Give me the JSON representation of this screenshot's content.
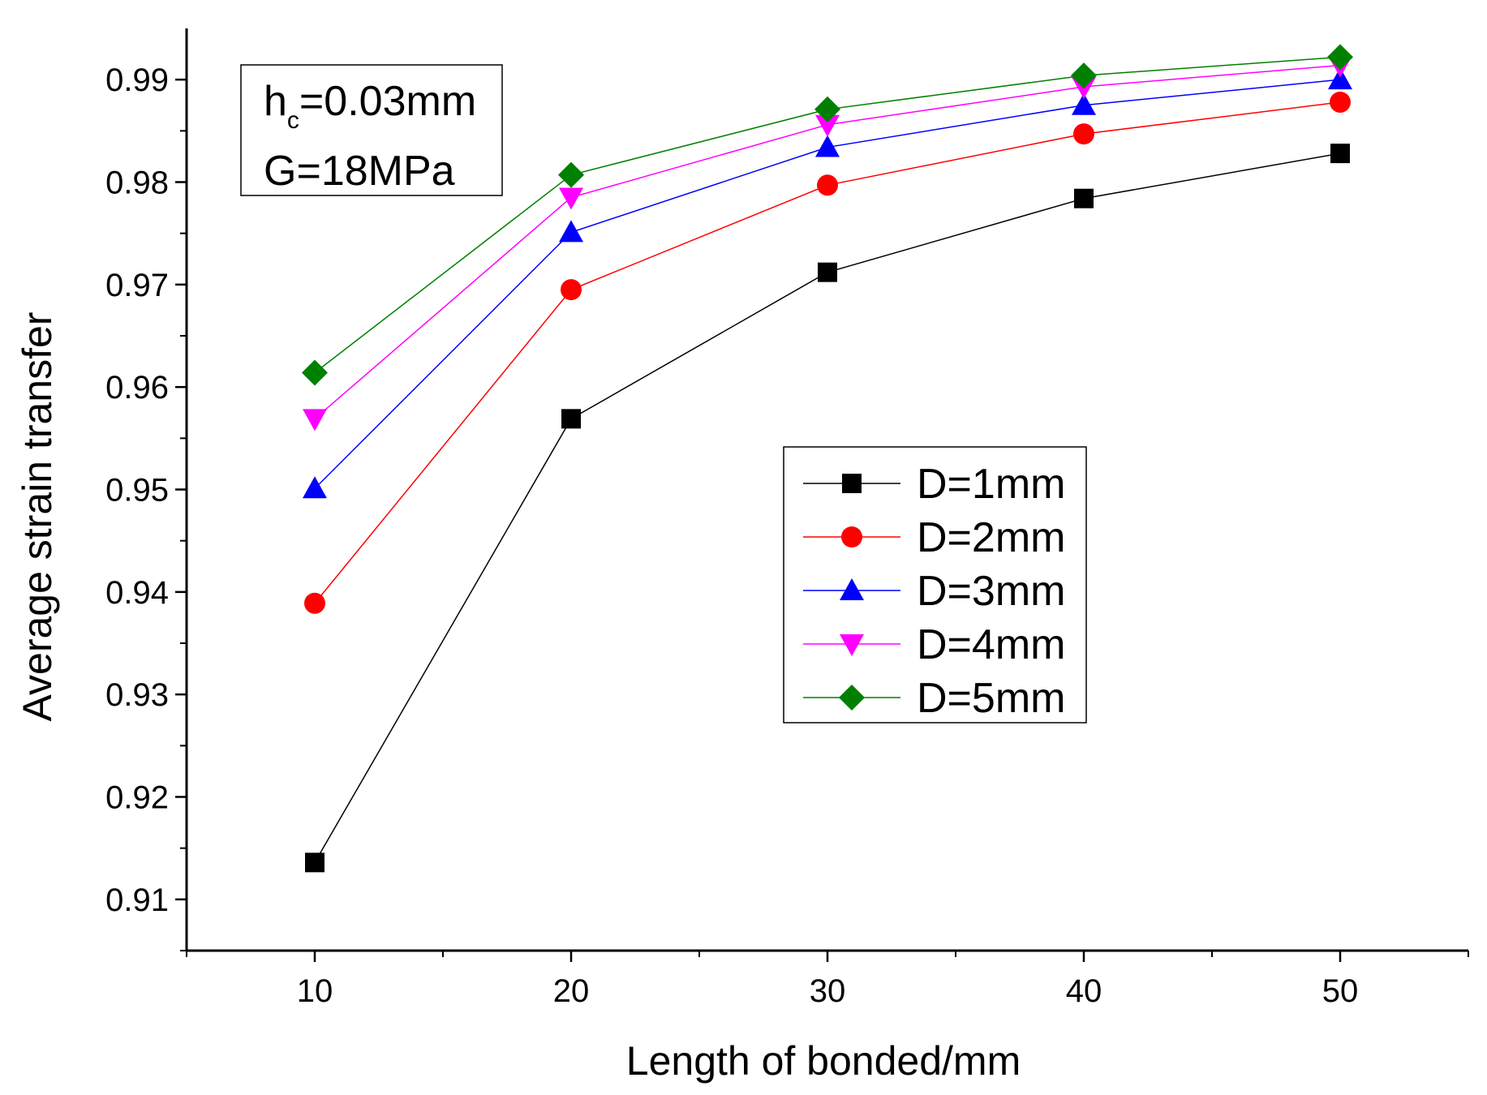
{
  "chart_data": {
    "type": "line",
    "title": "",
    "xlabel": "Length of bonded/mm",
    "ylabel": "Average strain transfer",
    "xlim": [
      5,
      55
    ],
    "ylim": [
      0.905,
      0.995
    ],
    "x": [
      10,
      20,
      30,
      40,
      50
    ],
    "xticks": [
      10,
      20,
      30,
      40,
      50
    ],
    "xticklabels": [
      "10",
      "20",
      "30",
      "40",
      "50"
    ],
    "yticks": [
      0.91,
      0.92,
      0.93,
      0.94,
      0.95,
      0.96,
      0.97,
      0.98,
      0.99
    ],
    "yticklabels": [
      "0.91",
      "0.92",
      "0.93",
      "0.94",
      "0.95",
      "0.96",
      "0.97",
      "0.98",
      "0.99"
    ],
    "grid": false,
    "legend_position": "center-right",
    "series": [
      {
        "name": "D=1mm",
        "marker": "square",
        "color": "#000000",
        "values": [
          0.9136,
          0.9569,
          0.9712,
          0.9784,
          0.9828
        ]
      },
      {
        "name": "D=2mm",
        "marker": "circle",
        "color": "#ff0000",
        "values": [
          0.9389,
          0.9695,
          0.9797,
          0.9847,
          0.9878
        ]
      },
      {
        "name": "D=3mm",
        "marker": "triangle-up",
        "color": "#0000ff",
        "values": [
          0.9501,
          0.9751,
          0.9834,
          0.9875,
          0.99
        ]
      },
      {
        "name": "D=4mm",
        "marker": "triangle-down",
        "color": "#ff00ff",
        "values": [
          0.9569,
          0.9785,
          0.9856,
          0.9893,
          0.9914
        ]
      },
      {
        "name": "D=5mm",
        "marker": "diamond",
        "color": "#008000",
        "values": [
          0.9614,
          0.9807,
          0.9871,
          0.9904,
          0.9922
        ]
      }
    ],
    "annotation": {
      "line1_main": "h",
      "line1_sub": "c",
      "line1_rest": "=0.03mm",
      "line2": "G=18MPa"
    }
  }
}
